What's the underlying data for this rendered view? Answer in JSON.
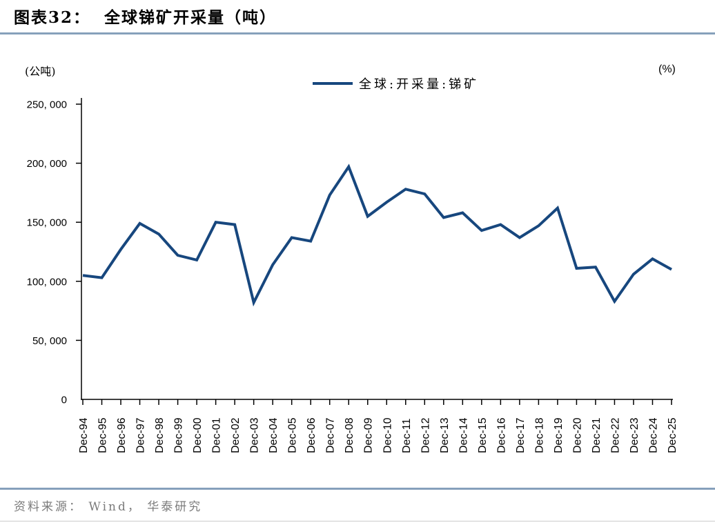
{
  "header": {
    "title": "图表32：  全球锑矿开采量（吨）"
  },
  "chart": {
    "left_unit": "(公吨)",
    "right_unit": "(%)",
    "legend": "全球:开采量:锑矿"
  },
  "footer": {
    "source": "资料来源： Wind， 华泰研究"
  },
  "colors": {
    "line": "#17477E",
    "axis": "#000000",
    "rule": "#86A0BB",
    "footer_text": "#7B7B7B"
  },
  "chart_data": {
    "type": "line",
    "title": "全球锑矿开采量（吨）",
    "x": [
      "Dec-94",
      "Dec-95",
      "Dec-96",
      "Dec-97",
      "Dec-98",
      "Dec-99",
      "Dec-00",
      "Dec-01",
      "Dec-02",
      "Dec-03",
      "Dec-04",
      "Dec-05",
      "Dec-06",
      "Dec-07",
      "Dec-08",
      "Dec-09",
      "Dec-10",
      "Dec-11",
      "Dec-12",
      "Dec-13",
      "Dec-14",
      "Dec-15",
      "Dec-16",
      "Dec-17",
      "Dec-18",
      "Dec-19",
      "Dec-20",
      "Dec-21",
      "Dec-22",
      "Dec-23",
      "Dec-24",
      "Dec-25"
    ],
    "series": [
      {
        "name": "全球:开采量:锑矿",
        "values": [
          105000,
          103000,
          127000,
          149000,
          140000,
          122000,
          118000,
          150000,
          148000,
          82000,
          114000,
          137000,
          134000,
          173000,
          197000,
          155000,
          167000,
          178000,
          174000,
          154000,
          158000,
          143000,
          148000,
          137000,
          147000,
          162000,
          111000,
          112000,
          83000,
          106000,
          119000,
          110000
        ]
      }
    ],
    "ylabel_unit": "公吨",
    "right_axis_unit": "%",
    "ylim": [
      0,
      250000
    ],
    "ytick_step": 50000,
    "ytick_labels": [
      "0",
      "50, 000",
      "100, 000",
      "150, 000",
      "200, 000",
      "250, 000"
    ],
    "grid": false,
    "legend_position": "top-center"
  }
}
